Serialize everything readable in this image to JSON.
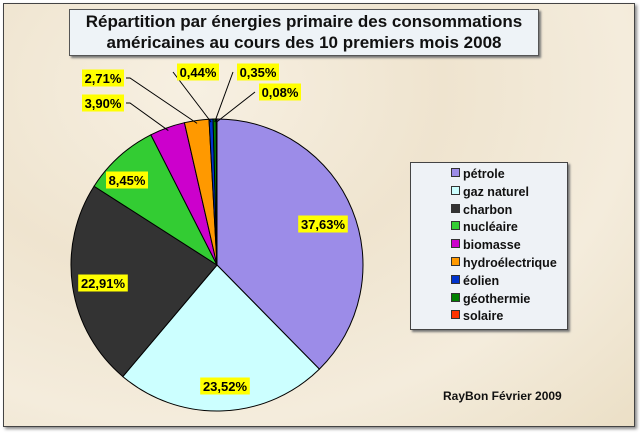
{
  "chart_data": {
    "type": "pie",
    "title": "Répartition par énergies primaire des consommations américaines au cours des 10 premiers mois 2008",
    "title_lines": [
      "Répartition par énergies primaire des consommations",
      "américaines au cours des 10 premiers mois 2008"
    ],
    "categories": [
      "pétrole",
      "gaz naturel",
      "charbon",
      "nucléaire",
      "biomasse",
      "hydroélectrique",
      "éolien",
      "géothermie",
      "solaire"
    ],
    "values": [
      37.63,
      23.52,
      22.91,
      8.45,
      3.9,
      2.71,
      0.44,
      0.35,
      0.08
    ],
    "data_labels": [
      "37,63%",
      "23,52%",
      "22,91%",
      "8,45%",
      "3,90%",
      "2,71%",
      "0,44%",
      "0,35%",
      "0,08%"
    ],
    "colors": [
      "#9c8ce8",
      "#ccffff",
      "#333333",
      "#33cc33",
      "#cc00cc",
      "#ff9900",
      "#0033cc",
      "#008000",
      "#ff3300"
    ],
    "label_color": "#ffff00",
    "legend_placement": "right",
    "start_angle": "top, clockwise"
  },
  "credit": "RayBon Février 2009"
}
